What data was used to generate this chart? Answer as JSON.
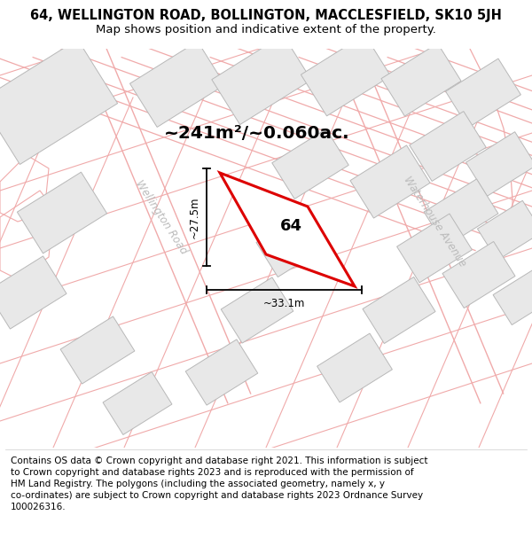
{
  "title_line1": "64, WELLINGTON ROAD, BOLLINGTON, MACCLESFIELD, SK10 5JH",
  "title_line2": "Map shows position and indicative extent of the property.",
  "footer_text": "Contains OS data © Crown copyright and database right 2021. This information is subject\nto Crown copyright and database rights 2023 and is reproduced with the permission of\nHM Land Registry. The polygons (including the associated geometry, namely x, y\nco-ordinates) are subject to Crown copyright and database rights 2023 Ordnance Survey\n100026316.",
  "area_text": "~241m²/~0.060ac.",
  "width_label": "~33.1m",
  "height_label": "~27.5m",
  "property_number": "64",
  "plot_outline_color": "#dd0000",
  "building_fill": "#e8e8e8",
  "building_edge": "#b8b8b8",
  "road_line_color": "#f0aaaa",
  "road_text_color": "#bbbbbb",
  "map_bg": "#f9f9f9",
  "title_fontsize": 10.5,
  "subtitle_fontsize": 9.5,
  "footer_fontsize": 7.5
}
